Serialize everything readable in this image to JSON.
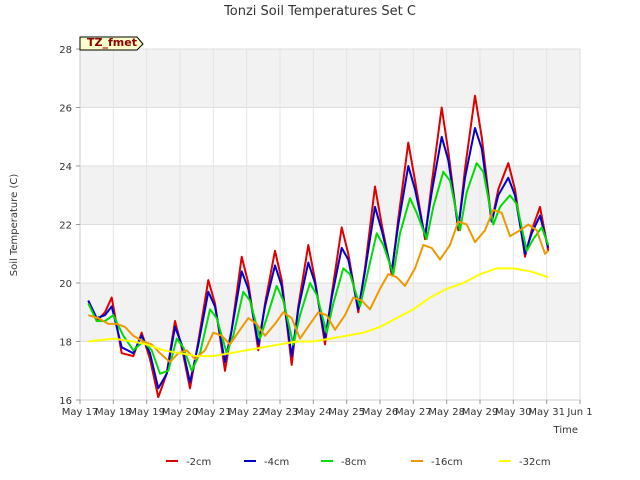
{
  "chart_data": {
    "type": "line",
    "title": "Tonzi Soil Temperatures Set C",
    "xlabel": "Time",
    "ylabel": "Soil Temperature (C)",
    "badge": "TZ_fmet",
    "x_ticks": [
      "May 17",
      "May 18",
      "May 19",
      "May 20",
      "May 21",
      "May 22",
      "May 23",
      "May 24",
      "May 25",
      "May 26",
      "May 27",
      "May 28",
      "May 29",
      "May 30",
      "May 31",
      "Jun 1"
    ],
    "xlim": [
      0,
      15
    ],
    "ylim": [
      16,
      28
    ],
    "y_ticks": [
      16,
      18,
      20,
      22,
      24,
      26,
      28
    ],
    "grid": true,
    "legend_position": "bottom",
    "series": [
      {
        "name": "-2cm",
        "color": "#dd0000",
        "x": [
          0.25,
          0.5,
          0.75,
          0.95,
          1.25,
          1.6,
          1.85,
          2.1,
          2.35,
          2.6,
          2.85,
          3.05,
          3.3,
          3.55,
          3.85,
          4.05,
          4.35,
          4.55,
          4.85,
          5.05,
          5.35,
          5.55,
          5.85,
          6.05,
          6.35,
          6.55,
          6.85,
          7.05,
          7.35,
          7.55,
          7.85,
          8.05,
          8.35,
          8.55,
          8.85,
          9.05,
          9.35,
          9.55,
          9.85,
          10.05,
          10.35,
          10.55,
          10.85,
          11.05,
          11.35,
          11.55,
          11.85,
          12.05,
          12.35,
          12.55,
          12.85,
          13.05,
          13.35,
          13.55,
          13.8,
          14.05
        ],
        "y": [
          19.4,
          18.7,
          19.0,
          19.5,
          17.6,
          17.5,
          18.3,
          17.4,
          16.1,
          16.9,
          18.7,
          17.8,
          16.4,
          18.0,
          20.1,
          19.3,
          17.0,
          18.4,
          20.9,
          20.0,
          17.7,
          19.3,
          21.1,
          20.1,
          17.2,
          19.2,
          21.3,
          20.1,
          17.9,
          19.6,
          21.9,
          21.0,
          19.0,
          20.5,
          23.3,
          22.0,
          20.3,
          22.2,
          24.8,
          23.5,
          21.5,
          23.4,
          26.0,
          24.5,
          21.8,
          23.9,
          26.4,
          25.0,
          22.1,
          23.2,
          24.1,
          23.2,
          20.9,
          21.8,
          22.6,
          21.1
        ]
      },
      {
        "name": "-4cm",
        "color": "#0000cc",
        "x": [
          0.25,
          0.5,
          0.75,
          0.95,
          1.25,
          1.6,
          1.85,
          2.1,
          2.35,
          2.6,
          2.85,
          3.05,
          3.3,
          3.55,
          3.85,
          4.05,
          4.35,
          4.55,
          4.85,
          5.05,
          5.35,
          5.55,
          5.85,
          6.05,
          6.35,
          6.55,
          6.85,
          7.05,
          7.35,
          7.55,
          7.85,
          8.05,
          8.35,
          8.55,
          8.85,
          9.05,
          9.35,
          9.55,
          9.85,
          10.05,
          10.35,
          10.55,
          10.85,
          11.05,
          11.35,
          11.55,
          11.85,
          12.05,
          12.35,
          12.55,
          12.85,
          13.05,
          13.35,
          13.55,
          13.8,
          14.05
        ],
        "y": [
          19.4,
          18.8,
          18.9,
          19.2,
          17.8,
          17.6,
          18.2,
          17.6,
          16.4,
          16.9,
          18.5,
          17.9,
          16.6,
          17.9,
          19.7,
          19.2,
          17.3,
          18.4,
          20.4,
          19.8,
          17.9,
          19.2,
          20.6,
          19.9,
          17.5,
          19.1,
          20.7,
          20.0,
          18.1,
          19.5,
          21.2,
          20.8,
          19.1,
          20.4,
          22.6,
          21.8,
          20.4,
          22.0,
          24.0,
          23.2,
          21.6,
          23.1,
          25.0,
          24.2,
          21.9,
          23.6,
          25.3,
          24.6,
          22.1,
          23.0,
          23.6,
          23.0,
          21.0,
          21.7,
          22.3,
          21.2
        ]
      },
      {
        "name": "-8cm",
        "color": "#00dd00",
        "x": [
          0.25,
          0.5,
          0.75,
          1.0,
          1.3,
          1.6,
          1.9,
          2.15,
          2.4,
          2.65,
          2.9,
          3.1,
          3.35,
          3.6,
          3.9,
          4.1,
          4.4,
          4.6,
          4.9,
          5.1,
          5.4,
          5.6,
          5.9,
          6.1,
          6.4,
          6.6,
          6.9,
          7.1,
          7.4,
          7.6,
          7.9,
          8.1,
          8.4,
          8.6,
          8.9,
          9.1,
          9.4,
          9.6,
          9.9,
          10.1,
          10.4,
          10.6,
          10.9,
          11.1,
          11.4,
          11.6,
          11.9,
          12.1,
          12.4,
          12.6,
          12.9,
          13.1,
          13.4,
          13.6,
          13.85,
          14.05
        ],
        "y": [
          19.3,
          18.7,
          18.7,
          18.9,
          18.2,
          17.7,
          18.0,
          17.7,
          16.9,
          17.0,
          18.1,
          17.8,
          17.0,
          17.6,
          19.1,
          18.8,
          17.6,
          18.2,
          19.7,
          19.4,
          18.1,
          18.8,
          19.9,
          19.4,
          17.9,
          18.9,
          20.0,
          19.6,
          18.3,
          19.3,
          20.5,
          20.3,
          19.2,
          20.2,
          21.7,
          21.3,
          20.3,
          21.7,
          22.9,
          22.4,
          21.5,
          22.6,
          23.8,
          23.5,
          21.8,
          23.1,
          24.1,
          23.8,
          22.0,
          22.6,
          23.0,
          22.7,
          21.1,
          21.5,
          21.9,
          21.3
        ]
      },
      {
        "name": "-16cm",
        "color": "#ee9900",
        "x": [
          0.25,
          0.55,
          0.85,
          1.1,
          1.35,
          1.6,
          1.9,
          2.15,
          2.4,
          2.7,
          2.95,
          3.2,
          3.45,
          3.75,
          4.0,
          4.25,
          4.5,
          4.8,
          5.05,
          5.3,
          5.55,
          5.85,
          6.1,
          6.35,
          6.6,
          6.9,
          7.15,
          7.4,
          7.65,
          7.95,
          8.2,
          8.45,
          8.7,
          9.0,
          9.25,
          9.5,
          9.75,
          10.05,
          10.3,
          10.55,
          10.8,
          11.1,
          11.35,
          11.6,
          11.85,
          12.15,
          12.4,
          12.65,
          12.9,
          13.2,
          13.45,
          13.7,
          13.95,
          14.05
        ],
        "y": [
          18.9,
          18.8,
          18.6,
          18.6,
          18.5,
          18.2,
          18.0,
          17.9,
          17.6,
          17.3,
          17.6,
          17.7,
          17.4,
          17.7,
          18.3,
          18.2,
          17.9,
          18.4,
          18.8,
          18.6,
          18.2,
          18.6,
          19.0,
          18.8,
          18.1,
          18.6,
          19.0,
          18.9,
          18.4,
          18.9,
          19.5,
          19.4,
          19.1,
          19.8,
          20.3,
          20.2,
          19.9,
          20.5,
          21.3,
          21.2,
          20.8,
          21.3,
          22.1,
          22.0,
          21.4,
          21.8,
          22.5,
          22.4,
          21.6,
          21.8,
          22.0,
          21.8,
          21.0,
          21.1
        ]
      },
      {
        "name": "-32cm",
        "color": "#ffff00",
        "x": [
          0.25,
          1.0,
          1.6,
          2.0,
          2.5,
          3.0,
          3.5,
          4.0,
          4.5,
          5.0,
          5.5,
          6.0,
          6.5,
          7.0,
          7.5,
          8.0,
          8.5,
          9.0,
          9.5,
          10.0,
          10.5,
          11.0,
          11.5,
          12.0,
          12.5,
          13.0,
          13.5,
          14.05
        ],
        "y": [
          18.0,
          18.1,
          18.0,
          17.9,
          17.7,
          17.6,
          17.5,
          17.5,
          17.6,
          17.7,
          17.8,
          17.9,
          18.0,
          18.0,
          18.1,
          18.2,
          18.3,
          18.5,
          18.8,
          19.1,
          19.5,
          19.8,
          20.0,
          20.3,
          20.5,
          20.5,
          20.4,
          20.2
        ]
      }
    ]
  }
}
